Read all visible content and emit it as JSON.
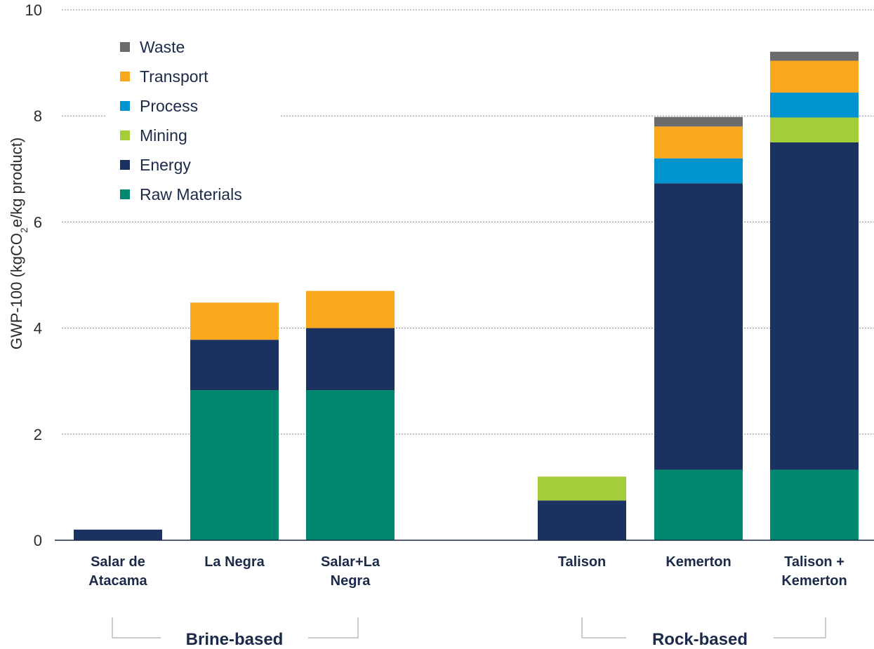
{
  "chart_data": {
    "type": "bar",
    "stacked": true,
    "ylabel_main": "GWP-100 (kgCO",
    "ylabel_sub": "2",
    "ylabel_tail": "e/kg product)",
    "ylim": [
      0,
      10
    ],
    "yticks": [
      "0",
      "2",
      "4",
      "6",
      "8",
      "10"
    ],
    "grid": true,
    "legend_position": "top-left",
    "categories": [
      {
        "lines": [
          "Salar de",
          "Atacama"
        ]
      },
      {
        "lines": [
          "La Negra"
        ]
      },
      {
        "lines": [
          "Salar+La",
          "Negra"
        ]
      },
      {
        "lines": [
          "Talison"
        ]
      },
      {
        "lines": [
          "Kemerton"
        ]
      },
      {
        "lines": [
          "Talison +",
          "Kemerton"
        ]
      }
    ],
    "groups": [
      {
        "label": "Brine-based",
        "categories": [
          0,
          1,
          2
        ]
      },
      {
        "label": "Rock-based",
        "categories": [
          3,
          4,
          5
        ]
      }
    ],
    "series": [
      {
        "name": "Raw Materials",
        "color": "#00876f",
        "values": [
          0,
          2.83,
          2.83,
          0,
          1.33,
          1.33
        ]
      },
      {
        "name": "Energy",
        "color": "#1b3160",
        "values": [
          0.2,
          0.95,
          1.17,
          0.75,
          5.4,
          6.17
        ]
      },
      {
        "name": "Mining",
        "color": "#a5cd39",
        "values": [
          0,
          0,
          0,
          0.45,
          0,
          0.47
        ]
      },
      {
        "name": "Process",
        "color": "#0093d0",
        "values": [
          0,
          0,
          0,
          0,
          0.47,
          0.47
        ]
      },
      {
        "name": "Transport",
        "color": "#f9a71d",
        "values": [
          0,
          0.7,
          0.7,
          0,
          0.6,
          0.6
        ]
      },
      {
        "name": "Waste",
        "color": "#6b6b6b",
        "values": [
          0,
          0,
          0,
          0,
          0.18,
          0.17
        ]
      }
    ],
    "legend_order": [
      5,
      4,
      3,
      2,
      1,
      0
    ]
  }
}
